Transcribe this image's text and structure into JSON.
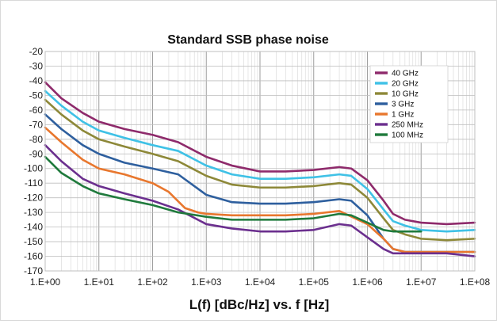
{
  "chart_data": {
    "type": "line",
    "title": "Standard SSB phase noise",
    "xlabel": "L(f) [dBc/Hz] vs. f [Hz]",
    "ylabel": "",
    "x_scale": "log",
    "xlim": [
      1,
      100000000
    ],
    "ylim": [
      -170,
      -20
    ],
    "grid": true,
    "legend_position": "top-right",
    "x_ticks": [
      1,
      10,
      100,
      1000,
      10000,
      100000,
      1000000,
      10000000,
      100000000
    ],
    "x_tick_labels": [
      "1.E+00",
      "1.E+01",
      "1.E+02",
      "1.E+03",
      "1.E+04",
      "1.E+05",
      "1.E+06",
      "1.E+07",
      "1.E+08"
    ],
    "y_ticks": [
      -20,
      -30,
      -40,
      -50,
      -60,
      -70,
      -80,
      -90,
      -100,
      -110,
      -120,
      -130,
      -140,
      -150,
      -160,
      -170
    ],
    "y_tick_labels": [
      "-20",
      "-30",
      "-40",
      "-50",
      "-60",
      "-70",
      "-80",
      "-90",
      "-100",
      "-110",
      "-120",
      "-130",
      "-140",
      "-150",
      "-160",
      "-170"
    ],
    "series": [
      {
        "name": "40 GHz",
        "color": "#8e2a6b",
        "x": [
          1,
          2,
          5,
          10,
          30,
          100,
          300,
          1000,
          3000,
          10000,
          30000,
          100000,
          300000,
          500000,
          1000000,
          2000000,
          3000000,
          5000000,
          10000000,
          30000000,
          100000000
        ],
        "y": [
          -41,
          -52,
          -62,
          -68,
          -73,
          -77,
          -82,
          -92,
          -98,
          -102,
          -102,
          -101,
          -99,
          -100,
          -108,
          -122,
          -131,
          -135,
          -137,
          -138,
          -137
        ]
      },
      {
        "name": "20 GHz",
        "color": "#3fc1e6",
        "x": [
          1,
          2,
          5,
          10,
          30,
          100,
          300,
          1000,
          3000,
          10000,
          30000,
          100000,
          300000,
          500000,
          1000000,
          2000000,
          3000000,
          5000000,
          10000000,
          30000000,
          100000000
        ],
        "y": [
          -47,
          -57,
          -68,
          -74,
          -79,
          -84,
          -88,
          -98,
          -104,
          -107,
          -107,
          -106,
          -104,
          -105,
          -114,
          -128,
          -136,
          -139,
          -142,
          -143,
          -142
        ]
      },
      {
        "name": "10 GHz",
        "color": "#8d8838",
        "x": [
          1,
          2,
          5,
          10,
          30,
          100,
          300,
          1000,
          3000,
          10000,
          30000,
          100000,
          300000,
          500000,
          1000000,
          2000000,
          3000000,
          5000000,
          10000000,
          30000000,
          100000000
        ],
        "y": [
          -53,
          -63,
          -74,
          -80,
          -85,
          -90,
          -95,
          -105,
          -111,
          -113,
          -113,
          -112,
          -110,
          -111,
          -120,
          -134,
          -142,
          -145,
          -148,
          -149,
          -148
        ]
      },
      {
        "name": "3 GHz",
        "color": "#2e5f9e",
        "x": [
          1,
          2,
          5,
          10,
          30,
          100,
          300,
          1000,
          3000,
          10000,
          30000,
          100000,
          300000,
          500000,
          1000000,
          2000000,
          3000000,
          5000000,
          10000000,
          30000000,
          100000000
        ],
        "y": [
          -63,
          -73,
          -84,
          -90,
          -96,
          -100,
          -104,
          -118,
          -123,
          -124,
          -124,
          -123,
          -121,
          -122,
          -132,
          -148,
          -155,
          -157,
          -157,
          -157,
          -157
        ]
      },
      {
        "name": "1 GHz",
        "color": "#e8772e",
        "x": [
          1,
          2,
          5,
          10,
          30,
          100,
          200,
          400,
          700,
          1000,
          3000,
          10000,
          30000,
          100000,
          300000,
          1000000,
          2000000,
          3000000,
          5000000,
          10000000,
          100000000
        ],
        "y": [
          -72,
          -82,
          -94,
          -100,
          -104,
          -110,
          -116,
          -127,
          -130,
          -131,
          -132,
          -132,
          -132,
          -131,
          -129,
          -138,
          -148,
          -155,
          -157,
          -157,
          -157
        ]
      },
      {
        "name": "250 MHz",
        "color": "#6b2f8e",
        "x": [
          1,
          2,
          5,
          10,
          30,
          100,
          300,
          1000,
          3000,
          10000,
          30000,
          100000,
          300000,
          500000,
          1000000,
          2000000,
          3000000,
          5000000,
          10000000,
          30000000,
          100000000
        ],
        "y": [
          -84,
          -95,
          -107,
          -112,
          -117,
          -122,
          -128,
          -138,
          -141,
          -143,
          -143,
          -142,
          -138,
          -139,
          -147,
          -155,
          -158,
          -158,
          -158,
          -158,
          -160
        ]
      },
      {
        "name": "100 MHz",
        "color": "#1f7a3c",
        "x": [
          1,
          2,
          5,
          10,
          30,
          100,
          300,
          1000,
          3000,
          10000,
          30000,
          100000,
          300000,
          500000,
          1000000,
          2000000,
          3000000,
          5000000,
          10000000
        ],
        "y": [
          -92,
          -103,
          -112,
          -117,
          -121,
          -125,
          -130,
          -133,
          -135,
          -135,
          -135,
          -134,
          -131,
          -132,
          -137,
          -142,
          -143,
          -143,
          -143
        ]
      }
    ]
  }
}
